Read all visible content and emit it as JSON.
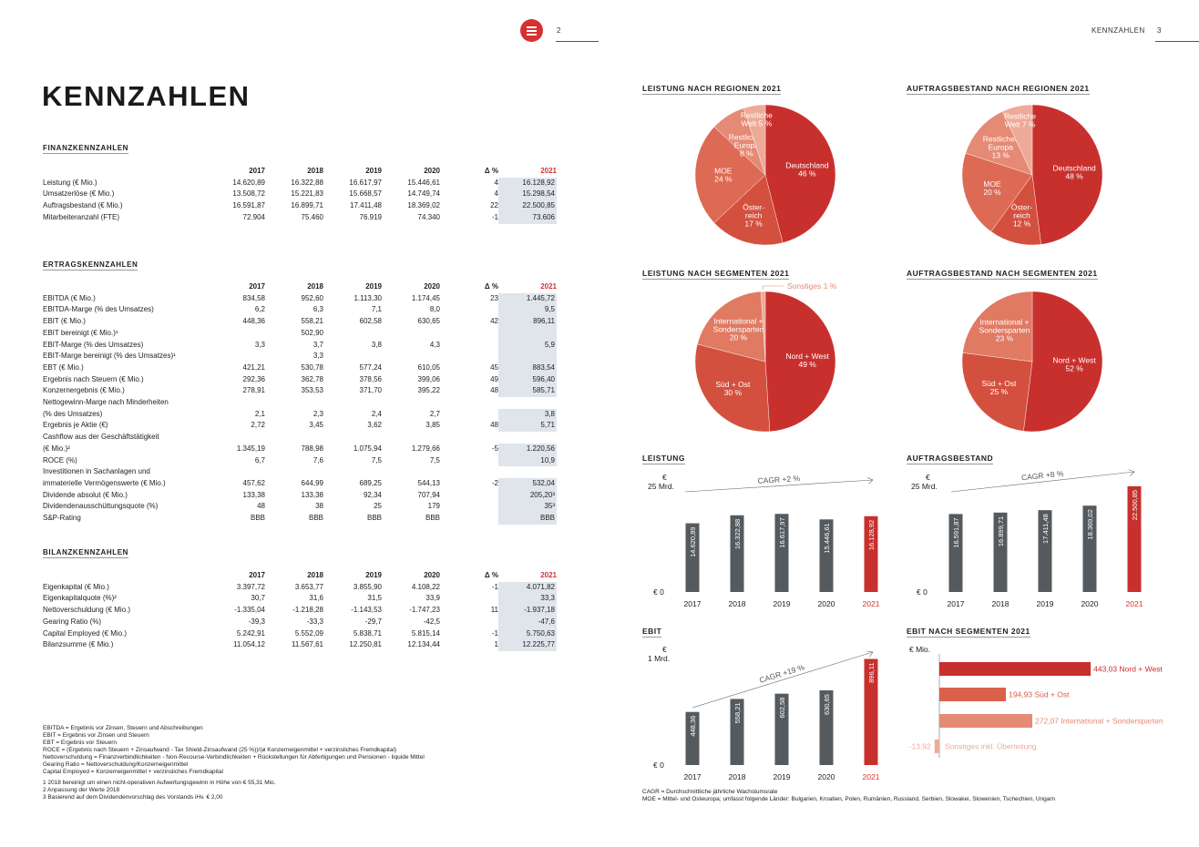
{
  "header": {
    "left_page_number": "2",
    "right_running_title": "KENNZAHLEN",
    "right_page_number": "3"
  },
  "title": "KENNZAHLEN",
  "tables": [
    {
      "title": "FINANZKENNZAHLEN",
      "columns": [
        "2017",
        "2018",
        "2019",
        "2020",
        "Δ %",
        "2021"
      ],
      "rows": [
        {
          "label": "Leistung (€ Mio.)",
          "values": [
            "14.620,89",
            "16.322,88",
            "16.617,97",
            "15.446,61",
            "4",
            "16.128,92"
          ]
        },
        {
          "label": "Umsatzerlöse (€ Mio.)",
          "values": [
            "13.508,72",
            "15.221,83",
            "15.668,57",
            "14.749,74",
            "4",
            "15.298,54"
          ]
        },
        {
          "label": "Auftragsbestand (€ Mio.)",
          "values": [
            "16.591,87",
            "16.899,71",
            "17.411,48",
            "18.369,02",
            "22",
            "22.500,85"
          ]
        },
        {
          "label": "Mitarbeiteranzahl (FTE)",
          "values": [
            "72.904",
            "75.460",
            "76.919",
            "74.340",
            "-1",
            "73.606"
          ]
        }
      ]
    },
    {
      "title": "ERTRAGSKENNZAHLEN",
      "columns": [
        "2017",
        "2018",
        "2019",
        "2020",
        "Δ %",
        "2021"
      ],
      "rows": [
        {
          "label": "EBITDA (€ Mio.)",
          "values": [
            "834,58",
            "952,60",
            "1.113,30",
            "1.174,45",
            "23",
            "1.445,72"
          ]
        },
        {
          "label": "EBITDA-Marge (% des Umsatzes)",
          "values": [
            "6,2",
            "6,3",
            "7,1",
            "8,0",
            "",
            "9,5"
          ]
        },
        {
          "label": "EBIT (€ Mio.)",
          "values": [
            "448,36",
            "558,21",
            "602,58",
            "630,65",
            "42",
            "896,11"
          ]
        },
        {
          "label": "EBIT bereinigt (€ Mio.)¹",
          "values": [
            "",
            "502,90",
            "",
            "",
            "",
            ""
          ]
        },
        {
          "label": "EBIT-Marge (% des Umsatzes)",
          "values": [
            "3,3",
            "3,7",
            "3,8",
            "4,3",
            "",
            "5,9"
          ]
        },
        {
          "label": "EBIT-Marge bereinigt (% des Umsatzes)¹",
          "values": [
            "",
            "3,3",
            "",
            "",
            "",
            ""
          ]
        },
        {
          "label": "EBT (€ Mio.)",
          "values": [
            "421,21",
            "530,78",
            "577,24",
            "610,05",
            "45",
            "883,54"
          ]
        },
        {
          "label": "Ergebnis nach Steuern (€ Mio.)",
          "values": [
            "292,36",
            "362,78",
            "378,56",
            "399,06",
            "49",
            "596,40"
          ]
        },
        {
          "label": "Konzernergebnis (€ Mio.)",
          "values": [
            "278,91",
            "353,53",
            "371,70",
            "395,22",
            "48",
            "585,71"
          ]
        },
        {
          "label": "Nettogewinn-Marge nach Minderheiten\n (% des Umsatzes)",
          "values": [
            "2,1",
            "2,3",
            "2,4",
            "2,7",
            "",
            "3,8"
          ]
        },
        {
          "label": "Ergebnis je Aktie (€)",
          "values": [
            "2,72",
            "3,45",
            "3,62",
            "3,85",
            "48",
            "5,71"
          ]
        },
        {
          "label": "Cashflow aus der Geschäftstätigkeit\n (€ Mio.)²",
          "values": [
            "1.345,19",
            "788,98",
            "1.075,94",
            "1.279,66",
            "-5",
            "1.220,56"
          ]
        },
        {
          "label": "ROCE (%)",
          "values": [
            "6,7",
            "7,6",
            "7,5",
            "7,5",
            "",
            "10,9"
          ]
        },
        {
          "label": "Investitionen in Sachanlagen und\n immaterielle Vermögenswerte (€ Mio.)",
          "values": [
            "457,62",
            "644,99",
            "689,25",
            "544,13",
            "-2",
            "532,04"
          ]
        },
        {
          "label": "Dividende absolut (€ Mio.)",
          "values": [
            "133,38",
            "133,38",
            "92,34",
            "707,94",
            "",
            "205,20³"
          ]
        },
        {
          "label": "Dividendenausschüttungsquote (%)",
          "values": [
            "48",
            "38",
            "25",
            "179",
            "",
            "35³"
          ]
        },
        {
          "label": "S&P-Rating",
          "values": [
            "BBB",
            "BBB",
            "BBB",
            "BBB",
            "",
            "BBB"
          ]
        }
      ]
    },
    {
      "title": "BILANZKENNZAHLEN",
      "columns": [
        "2017",
        "2018",
        "2019",
        "2020",
        "Δ %",
        "2021"
      ],
      "rows": [
        {
          "label": "Eigenkapital (€ Mio.)",
          "values": [
            "3.397,72",
            "3.653,77",
            "3.855,90",
            "4.108,22",
            "-1",
            "4.071,82"
          ]
        },
        {
          "label": "Eigenkapitalquote (%)²",
          "values": [
            "30,7",
            "31,6",
            "31,5",
            "33,9",
            "",
            "33,3"
          ]
        },
        {
          "label": "Nettoverschuldung (€ Mio.)",
          "values": [
            "-1.335,04",
            "-1.218,28",
            "-1.143,53",
            "-1.747,23",
            "11",
            "-1.937,18"
          ]
        },
        {
          "label": "Gearing Ratio (%)",
          "values": [
            "-39,3",
            "-33,3",
            "-29,7",
            "-42,5",
            "",
            "-47,6"
          ]
        },
        {
          "label": "Capital Employed (€ Mio.)",
          "values": [
            "5.242,91",
            "5.552,09",
            "5.838,71",
            "5.815,14",
            "-1",
            "5.750,63"
          ]
        },
        {
          "label": "Bilanzsumme (€ Mio.)",
          "values": [
            "11.054,12",
            "11.567,61",
            "12.250,81",
            "12.134,44",
            "1",
            "12.225,77"
          ]
        }
      ]
    }
  ],
  "definitions": "EBITDA = Ergebnis vor Zinsen, Steuern und Abschreibungen\nEBIT = Ergebnis vor Zinsen und Steuern\nEBT = Ergebnis vor Steuern\nROCE = (Ergebnis nach Steuern + Zinsaufwand - Tax Shield-Zinsaufwand (25 %))/(ø Konzerneigenmittel + verzinsliches Fremdkapital)\nNettoverschuldung = Finanzverbindlichkeiten - Non-Recourse-Verbindlichkeiten + Rückstellungen für Abfertigungen und Pensionen - liquide Mittel\nGearing Ratio = Nettoverschuldung/Konzerneigenmittel\nCapital Employed = Konzerneigenmittel + verzinsliches Fremdkapital",
  "footnotes": "1  2018 bereinigt um einen nicht-operativen Aufwertungsgewinn in Höhe von € 55,31 Mio.\n2  Anpassung der Werte 2018\n3  Basierend auf dem Dividendenvorschlag des Vorstands iHv. € 2,00",
  "right_footnotes": "CAGR = Durchschnittliche jährliche Wachstumsrate\nMOE = Mittel- und Osteuropa; umfasst folgende Länder: Bulgarien, Kroatien, Polen, Rumänien, Russland, Serbien, Slowakei, Slowenien, Tschechien, Ungarn",
  "colors": {
    "accent": "#d6312f",
    "bar_grey": "#555a5e",
    "highlight": "#dfe5eb"
  },
  "chart_data": [
    {
      "id": "pie1",
      "type": "pie",
      "title": "LEISTUNG NACH REGIONEN 2021",
      "unit": "%",
      "slices": [
        {
          "label": "Deutschland",
          "value": 46,
          "color": "#c8302e"
        },
        {
          "label": "Öster-\nreich",
          "value": 17,
          "color": "#d4503e"
        },
        {
          "label": "MOE",
          "value": 24,
          "color": "#dd6a55"
        },
        {
          "label": "Restliches\nEuropa",
          "value": 8,
          "color": "#e58a74"
        },
        {
          "label": "Restliche\nWelt",
          "value": 5,
          "color": "#eeaa98"
        }
      ]
    },
    {
      "id": "pie2",
      "type": "pie",
      "title": "AUFTRAGSBESTAND NACH REGIONEN 2021",
      "unit": "%",
      "slices": [
        {
          "label": "Deutschland",
          "value": 48,
          "color": "#c8302e"
        },
        {
          "label": "Öster-\nreich",
          "value": 12,
          "color": "#d4503e"
        },
        {
          "label": "MOE",
          "value": 20,
          "color": "#dd6a55"
        },
        {
          "label": "Restliches\nEuropa",
          "value": 13,
          "color": "#e58a74"
        },
        {
          "label": "Restliche\nWelt",
          "value": 7,
          "color": "#eeaa98"
        }
      ]
    },
    {
      "id": "pie3",
      "type": "pie",
      "title": "LEISTUNG NACH SEGMENTEN 2021",
      "unit": "%",
      "slices": [
        {
          "label": "Nord + West",
          "value": 49,
          "color": "#c8302e"
        },
        {
          "label": "Süd + Ost",
          "value": 30,
          "color": "#d4503e"
        },
        {
          "label": "International +\nSondersparten",
          "value": 20,
          "color": "#e07a63"
        },
        {
          "label": "Sonstiges",
          "value": 1,
          "color": "#eeaa98"
        }
      ]
    },
    {
      "id": "pie4",
      "type": "pie",
      "title": "AUFTRAGSBESTAND NACH SEGMENTEN 2021",
      "unit": "%",
      "slices": [
        {
          "label": "Nord + West",
          "value": 52,
          "color": "#c8302e"
        },
        {
          "label": "Süd + Ost",
          "value": 25,
          "color": "#d4503e"
        },
        {
          "label": "International +\nSondersparten",
          "value": 23,
          "color": "#e07a63"
        }
      ]
    },
    {
      "id": "bar1",
      "type": "bar",
      "title": "LEISTUNG",
      "ylabel": "€",
      "ymax_label": "25 Mrd.",
      "zero_label": "€ 0",
      "ylim": [
        0,
        25
      ],
      "categories": [
        "2017",
        "2018",
        "2019",
        "2020",
        "2021"
      ],
      "values": [
        14.62089,
        16.32288,
        16.61797,
        15.44661,
        16.12892
      ],
      "value_labels": [
        "14.620,89",
        "16.322,88",
        "16.617,97",
        "15.446,61",
        "16.128,92"
      ],
      "annotation": "CAGR +2 %"
    },
    {
      "id": "bar2",
      "type": "bar",
      "title": "AUFTRAGSBESTAND",
      "ylabel": "€",
      "ymax_label": "25 Mrd.",
      "zero_label": "€ 0",
      "ylim": [
        0,
        25
      ],
      "categories": [
        "2017",
        "2018",
        "2019",
        "2020",
        "2021"
      ],
      "values": [
        16.59187,
        16.89971,
        17.41148,
        18.36902,
        22.50085
      ],
      "value_labels": [
        "16.591,87",
        "16.899,71",
        "17.411,48",
        "18.369,02",
        "22.500,85"
      ],
      "annotation": "CAGR +8 %"
    },
    {
      "id": "bar3",
      "type": "bar",
      "title": "EBIT",
      "ylabel": "€",
      "ymax_label": "1 Mrd.",
      "zero_label": "€ 0",
      "ylim": [
        0,
        1000
      ],
      "categories": [
        "2017",
        "2018",
        "2019",
        "2020",
        "2021"
      ],
      "values": [
        448.36,
        558.21,
        602.58,
        630.65,
        896.11
      ],
      "value_labels": [
        "448,36",
        "558,21",
        "602,58",
        "630,65",
        "896,11"
      ],
      "annotation": "CAGR +19 %"
    },
    {
      "id": "hbar",
      "type": "bar",
      "orientation": "horizontal",
      "title": "EBIT NACH SEGMENTEN 2021",
      "unit_label": "€ Mio.",
      "categories": [
        "Nord + West",
        "Süd + Ost",
        "International + Sondersparten",
        "Sonstiges inkl. Überleitung"
      ],
      "values": [
        443.03,
        194.93,
        272.07,
        -13.92
      ],
      "value_labels": [
        "443,03",
        "194,93",
        "272,07",
        "-13,92"
      ],
      "colors": [
        "#c8302e",
        "#d9614c",
        "#e58a74",
        "#eeaa98"
      ]
    }
  ]
}
